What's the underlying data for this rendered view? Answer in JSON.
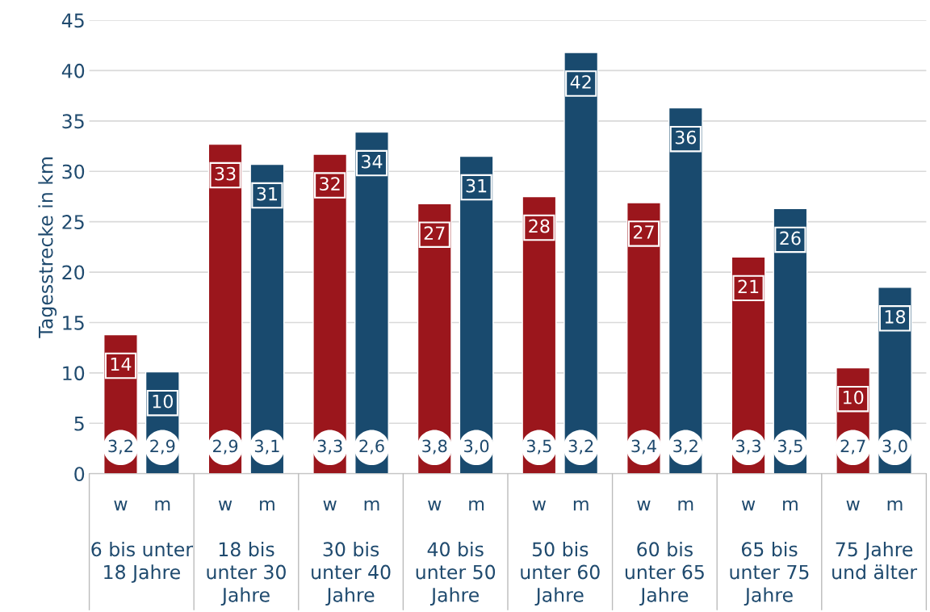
{
  "chart_data": {
    "type": "bar",
    "ylabel": "Tagesstrecke in km",
    "categories": [
      "6 bis unter\n18 Jahre",
      "18 bis\nunter 30\nJahre",
      "30 bis\nunter 40\nJahre",
      "40 bis\nunter 50\nJahre",
      "50 bis\nunter 60\nJahre",
      "60 bis\nunter 65\nJahre",
      "65 bis\nunter 75\nJahre",
      "75 Jahre\nund älter"
    ],
    "series": [
      {
        "name": "w",
        "color": "#9b161c",
        "values": [
          13.8,
          32.7,
          31.7,
          26.8,
          27.5,
          26.9,
          21.5,
          10.5
        ],
        "value_labels": [
          "14",
          "33",
          "32",
          "27",
          "28",
          "27",
          "21",
          "10"
        ]
      },
      {
        "name": "m",
        "color": "#194a6e",
        "values": [
          10.1,
          30.7,
          33.9,
          31.5,
          41.8,
          36.3,
          26.3,
          18.5
        ],
        "value_labels": [
          "10",
          "31",
          "34",
          "31",
          "42",
          "36",
          "26",
          "18"
        ]
      }
    ],
    "annotations": [
      "3,2",
      "2,9",
      "2,9",
      "3,1",
      "3,3",
      "2,6",
      "3,8",
      "3,0",
      "3,5",
      "3,2",
      "3,4",
      "3,2",
      "3,3",
      "3,5",
      "2,7",
      "3,0"
    ],
    "ylim": [
      0,
      45
    ],
    "yticks": [
      0,
      5,
      10,
      15,
      20,
      25,
      30,
      35,
      40,
      45
    ],
    "grid": "y",
    "legend": false
  }
}
